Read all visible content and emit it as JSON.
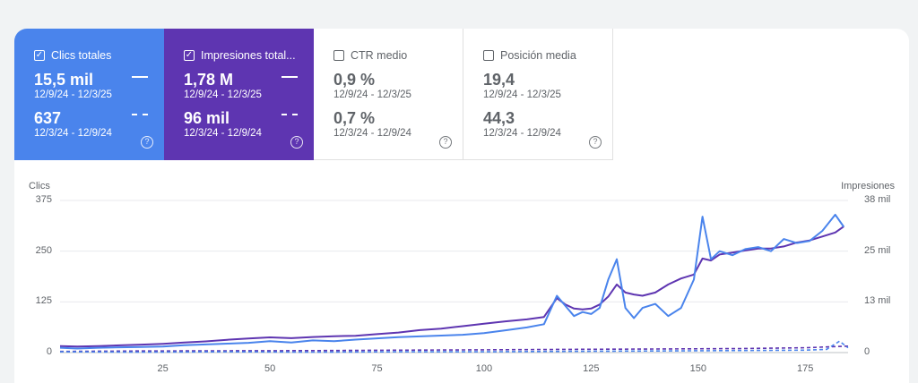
{
  "metrics": [
    {
      "title": "Clics totales",
      "checked": true,
      "value_current": "15,5 mil",
      "range_current": "12/9/24 - 12/3/25",
      "value_previous": "637",
      "range_previous": "12/3/24 - 12/9/24",
      "help": "?"
    },
    {
      "title": "Impresiones total...",
      "checked": true,
      "value_current": "1,78 M",
      "range_current": "12/9/24 - 12/3/25",
      "value_previous": "96 mil",
      "range_previous": "12/3/24 - 12/9/24",
      "help": "?"
    },
    {
      "title": "CTR medio",
      "checked": false,
      "value_current": "0,9 %",
      "range_current": "12/9/24 - 12/3/25",
      "value_previous": "0,7 %",
      "range_previous": "12/3/24 - 12/9/24",
      "help": "?"
    },
    {
      "title": "Posición media",
      "checked": false,
      "value_current": "19,4",
      "range_current": "12/9/24 - 12/3/25",
      "value_previous": "44,3",
      "range_previous": "12/3/24 - 12/9/24",
      "help": "?"
    }
  ],
  "colors": {
    "clicks": "#4a84ec",
    "impressions": "#5e35b1",
    "grid": "#e8eaed",
    "text": "#5f6368"
  },
  "chart_data": {
    "type": "line",
    "ylabel_left": "Clics",
    "ylabel_right": "Impresiones",
    "y_left_ticks": [
      "0",
      "125",
      "250",
      "375"
    ],
    "y_right_ticks": [
      "0",
      "13 mil",
      "25 mil",
      "38 mil"
    ],
    "x_ticks": [
      "25",
      "50",
      "75",
      "100",
      "125",
      "150",
      "175"
    ],
    "ylim_left": [
      0,
      375
    ],
    "ylim_right": [
      0,
      38000
    ],
    "xlim": [
      1,
      185
    ],
    "grid": true,
    "series": [
      {
        "axis": "left",
        "style": "solid",
        "color": "#4a84ec",
        "x": [
          1,
          5,
          10,
          15,
          20,
          25,
          30,
          35,
          40,
          45,
          50,
          55,
          60,
          65,
          70,
          75,
          80,
          85,
          90,
          95,
          100,
          105,
          110,
          114,
          117,
          119,
          121,
          123,
          125,
          127,
          129,
          131,
          133,
          135,
          137,
          140,
          143,
          146,
          149,
          151,
          153,
          155,
          158,
          161,
          164,
          167,
          170,
          173,
          176,
          179,
          182,
          184
        ],
        "y": [
          12,
          10,
          12,
          13,
          14,
          15,
          18,
          20,
          22,
          24,
          28,
          25,
          30,
          28,
          32,
          35,
          38,
          40,
          42,
          44,
          48,
          55,
          62,
          70,
          140,
          115,
          90,
          100,
          95,
          110,
          180,
          230,
          110,
          85,
          110,
          120,
          90,
          110,
          180,
          335,
          230,
          250,
          240,
          255,
          260,
          250,
          280,
          270,
          275,
          300,
          340,
          310
        ]
      },
      {
        "axis": "right",
        "style": "solid",
        "color": "#5e35b1",
        "x": [
          1,
          5,
          10,
          15,
          20,
          25,
          30,
          35,
          40,
          45,
          50,
          55,
          60,
          65,
          70,
          75,
          80,
          85,
          90,
          95,
          100,
          105,
          110,
          114,
          117,
          119,
          121,
          123,
          125,
          127,
          129,
          131,
          133,
          135,
          137,
          140,
          143,
          146,
          149,
          151,
          153,
          155,
          158,
          161,
          164,
          167,
          170,
          173,
          176,
          179,
          182,
          184
        ],
        "y": [
          1600,
          1500,
          1600,
          1800,
          2000,
          2200,
          2500,
          2800,
          3200,
          3500,
          3800,
          3600,
          3900,
          4100,
          4200,
          4600,
          5000,
          5600,
          6000,
          6600,
          7200,
          7800,
          8300,
          8900,
          13600,
          12000,
          11000,
          10800,
          11000,
          12000,
          14000,
          17000,
          15000,
          14500,
          14200,
          15000,
          17000,
          18500,
          19500,
          23500,
          23000,
          24500,
          25000,
          25500,
          26000,
          26000,
          26500,
          27500,
          28000,
          29000,
          30000,
          31500
        ]
      },
      {
        "axis": "left",
        "style": "dashed",
        "color": "#4a84ec",
        "x": [
          1,
          20,
          40,
          60,
          80,
          100,
          120,
          140,
          160,
          175,
          180,
          183,
          185
        ],
        "y": [
          2,
          1,
          2,
          1,
          2,
          2,
          3,
          4,
          5,
          6,
          8,
          28,
          12
        ]
      },
      {
        "axis": "right",
        "style": "dashed",
        "color": "#5e35b1",
        "x": [
          1,
          20,
          40,
          60,
          80,
          100,
          120,
          140,
          160,
          175,
          180,
          185
        ],
        "y": [
          300,
          400,
          450,
          500,
          600,
          700,
          800,
          900,
          1000,
          1200,
          1400,
          1600
        ]
      }
    ]
  }
}
